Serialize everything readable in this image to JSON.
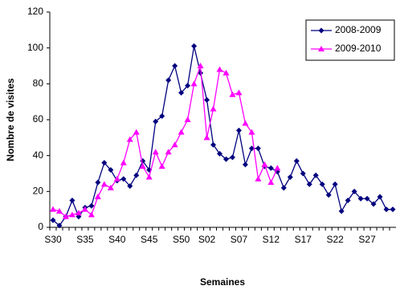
{
  "chart_data": {
    "type": "line",
    "x_label": "Semaines",
    "y_label": "Nombre de visites",
    "categories": [
      "S30",
      null,
      null,
      null,
      null,
      "S35",
      null,
      null,
      null,
      null,
      "S40",
      null,
      null,
      null,
      null,
      "S45",
      null,
      null,
      null,
      null,
      "S50",
      null,
      null,
      null,
      "S02",
      null,
      null,
      null,
      null,
      "S07",
      null,
      null,
      null,
      null,
      "S12",
      null,
      null,
      null,
      null,
      "S17",
      null,
      null,
      null,
      null,
      "S22",
      null,
      null,
      null,
      null,
      "S27",
      null,
      null,
      null,
      null
    ],
    "series": [
      {
        "name": "2008-2009",
        "color": "#00007f",
        "marker": "diamond",
        "values": [
          4,
          1,
          6,
          15,
          6,
          11,
          12,
          25,
          36,
          32,
          26,
          27,
          23,
          29,
          37,
          32,
          59,
          62,
          82,
          90,
          75,
          79,
          101,
          86,
          71,
          46,
          41,
          38,
          39,
          54,
          35,
          44,
          44,
          34,
          33,
          31,
          22,
          28,
          37,
          30,
          24,
          29,
          24,
          18,
          24,
          9,
          15,
          20,
          16,
          16,
          13,
          17,
          10,
          10
        ]
      },
      {
        "name": "2009-2010",
        "color": "#ff00ff",
        "marker": "triangle",
        "values": [
          10,
          9,
          6,
          7,
          8,
          10,
          7,
          17,
          24,
          22,
          27,
          36,
          49,
          53,
          34,
          28,
          42,
          34,
          42,
          46,
          53,
          60,
          80,
          90,
          50,
          66,
          88,
          86,
          74,
          75,
          58,
          53,
          27,
          35,
          25,
          33,
          null,
          null,
          null,
          null,
          null,
          null,
          null,
          null,
          null,
          null,
          null,
          null,
          null,
          null,
          null,
          null,
          null,
          null
        ]
      }
    ],
    "ylim": [
      0,
      120
    ],
    "yticks": [
      0,
      20,
      40,
      60,
      80,
      100,
      120
    ],
    "grid": false,
    "legend": "upper right"
  }
}
